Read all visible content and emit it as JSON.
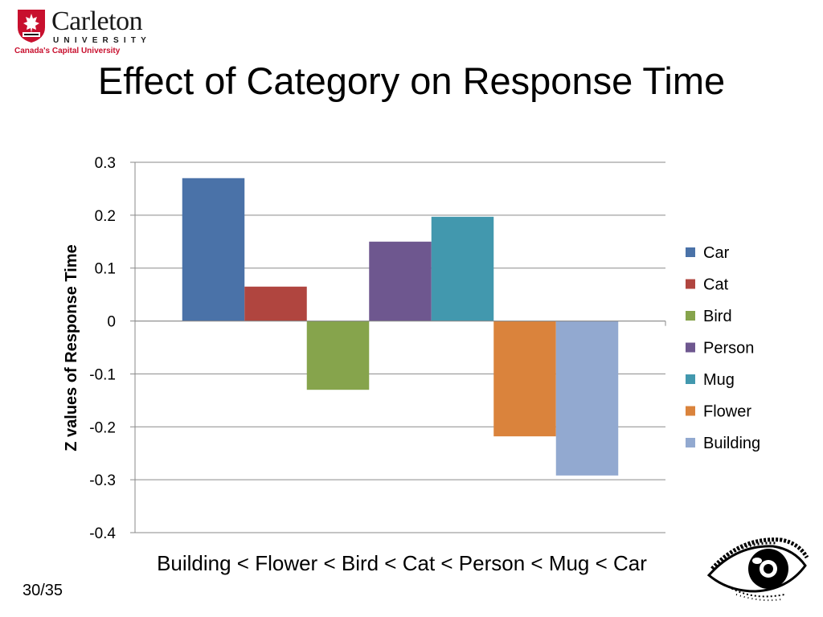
{
  "logo": {
    "name": "Carleton",
    "university": "UNIVERSITY",
    "tagline": "Canada's Capital University"
  },
  "slide": {
    "title": "Effect of Category on Response Time",
    "page": "30/35"
  },
  "colors": {
    "Car": "#4a72a8",
    "Cat": "#b0453f",
    "Bird": "#86a44c",
    "Person": "#6e578f",
    "Mug": "#4298ae",
    "Flower": "#da833c",
    "Building": "#92a9d0"
  },
  "chart_data": {
    "type": "bar",
    "title": "",
    "xlabel": "Building < Flower < Bird < Cat < Person < Mug < Car",
    "ylabel": "Z values of Response Time",
    "ylim": [
      -0.4,
      0.3
    ],
    "yticks": [
      "0.3",
      "0.2",
      "0.1",
      "0",
      "-0.1",
      "-0.2",
      "-0.3",
      "-0.4"
    ],
    "grid": true,
    "legend_position": "right",
    "series": [
      {
        "name": "Car",
        "values": [
          0.27
        ]
      },
      {
        "name": "Cat",
        "values": [
          0.065
        ]
      },
      {
        "name": "Bird",
        "values": [
          -0.13
        ]
      },
      {
        "name": "Person",
        "values": [
          0.15
        ]
      },
      {
        "name": "Mug",
        "values": [
          0.197
        ]
      },
      {
        "name": "Flower",
        "values": [
          -0.218
        ]
      },
      {
        "name": "Building",
        "values": [
          -0.292
        ]
      }
    ]
  }
}
